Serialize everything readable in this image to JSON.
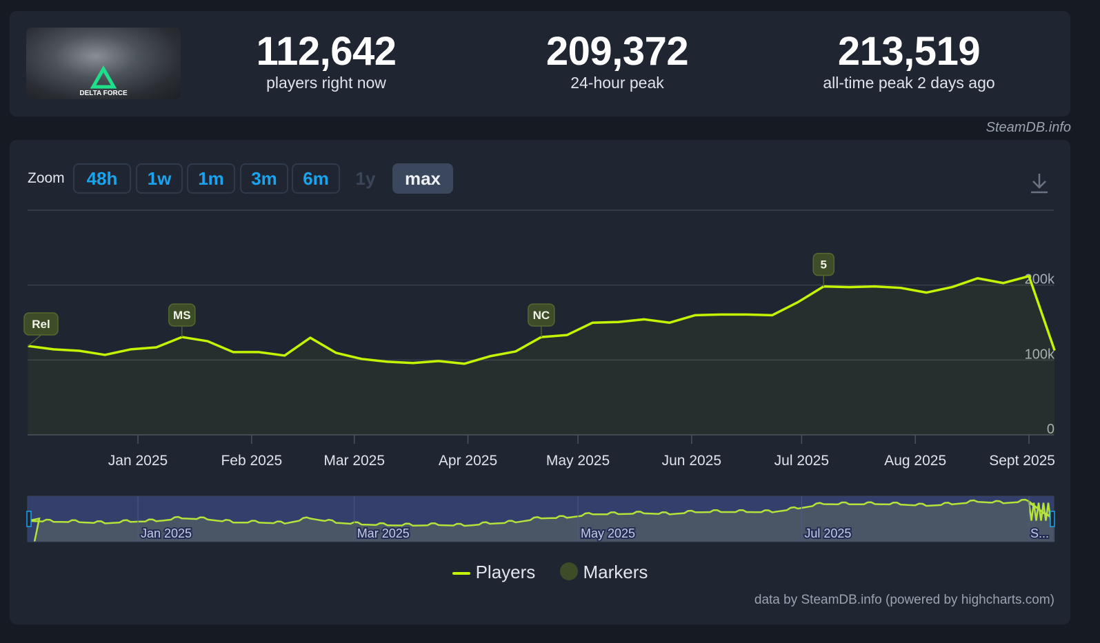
{
  "header": {
    "game_image_alt": "DELTA FORCE",
    "stats": [
      {
        "value": "112,642",
        "label": "players right now"
      },
      {
        "value": "209,372",
        "label": "24-hour peak"
      },
      {
        "value": "213,519",
        "label": "all-time peak 2 days ago"
      }
    ],
    "credit": "SteamDB.info"
  },
  "toolbar": {
    "zoom_label": "Zoom",
    "buttons": [
      {
        "label": "48h",
        "state": "enabled"
      },
      {
        "label": "1w",
        "state": "enabled"
      },
      {
        "label": "1m",
        "state": "enabled"
      },
      {
        "label": "3m",
        "state": "enabled"
      },
      {
        "label": "6m",
        "state": "enabled"
      },
      {
        "label": "1y",
        "state": "disabled"
      },
      {
        "label": "max",
        "state": "active"
      }
    ],
    "download_icon": "download-icon"
  },
  "chart_data": {
    "type": "area",
    "colors": {
      "line": "#c3f400",
      "marker": "#3d4d27"
    },
    "ylim": [
      0,
      300000
    ],
    "y_ticks": [
      {
        "value": 0,
        "label": "0"
      },
      {
        "value": 100000,
        "label": "100k"
      },
      {
        "value": 200000,
        "label": "200k"
      },
      {
        "value": 300000,
        "label": ""
      }
    ],
    "x_ticks": [
      {
        "date": "2025-01-01",
        "label": "Jan 2025"
      },
      {
        "date": "2025-02-01",
        "label": "Feb 2025"
      },
      {
        "date": "2025-03-01",
        "label": "Mar 2025"
      },
      {
        "date": "2025-04-01",
        "label": "Apr 2025"
      },
      {
        "date": "2025-05-01",
        "label": "May 2025"
      },
      {
        "date": "2025-06-01",
        "label": "Jun 2025"
      },
      {
        "date": "2025-07-01",
        "label": "Jul 2025"
      },
      {
        "date": "2025-08-01",
        "label": "Aug 2025"
      },
      {
        "date": "2025-09-01",
        "label": "Sept 2025"
      }
    ],
    "grid": true,
    "series": [
      {
        "name": "Players",
        "points": [
          [
            "2024-12-02",
            118700
          ],
          [
            "2024-12-09",
            114200
          ],
          [
            "2024-12-16",
            112300
          ],
          [
            "2024-12-23",
            106800
          ],
          [
            "2024-12-30",
            114200
          ],
          [
            "2025-01-06",
            116900
          ],
          [
            "2025-01-13",
            130600
          ],
          [
            "2025-01-20",
            125100
          ],
          [
            "2025-01-27",
            110500
          ],
          [
            "2025-02-03",
            110500
          ],
          [
            "2025-02-10",
            105900
          ],
          [
            "2025-02-17",
            129700
          ],
          [
            "2025-02-24",
            109600
          ],
          [
            "2025-03-03",
            101400
          ],
          [
            "2025-03-10",
            97700
          ],
          [
            "2025-03-17",
            95900
          ],
          [
            "2025-03-24",
            98600
          ],
          [
            "2025-03-31",
            95000
          ],
          [
            "2025-04-07",
            105000
          ],
          [
            "2025-04-14",
            111400
          ],
          [
            "2025-04-21",
            130600
          ],
          [
            "2025-04-28",
            133300
          ],
          [
            "2025-05-05",
            149800
          ],
          [
            "2025-05-12",
            150700
          ],
          [
            "2025-05-19",
            154300
          ],
          [
            "2025-05-26",
            149800
          ],
          [
            "2025-06-02",
            159800
          ],
          [
            "2025-06-09",
            160700
          ],
          [
            "2025-06-16",
            160700
          ],
          [
            "2025-06-23",
            159800
          ],
          [
            "2025-06-30",
            177200
          ],
          [
            "2025-07-07",
            198200
          ],
          [
            "2025-07-14",
            197300
          ],
          [
            "2025-07-21",
            198200
          ],
          [
            "2025-07-28",
            196300
          ],
          [
            "2025-08-04",
            190000
          ],
          [
            "2025-08-11",
            197300
          ],
          [
            "2025-08-18",
            209100
          ],
          [
            "2025-08-25",
            202700
          ],
          [
            "2025-09-01",
            211900
          ],
          [
            "2025-09-08",
            112642
          ]
        ]
      }
    ],
    "markers": [
      {
        "date": "2024-12-02",
        "label": "Rel"
      },
      {
        "date": "2025-01-13",
        "label": "MS"
      },
      {
        "date": "2025-04-21",
        "label": "NC"
      },
      {
        "date": "2025-07-07",
        "label": "5"
      }
    ],
    "navigator": {
      "x_ticks": [
        {
          "date": "2025-01-01",
          "label": "Jan 2025"
        },
        {
          "date": "2025-03-01",
          "label": "Mar 2025"
        },
        {
          "date": "2025-05-01",
          "label": "May 2025"
        },
        {
          "date": "2025-07-01",
          "label": "Jul 2025"
        },
        {
          "date": "2025-09-01",
          "label": "S..."
        }
      ]
    },
    "legend": [
      {
        "name": "Players",
        "symbol": "line"
      },
      {
        "name": "Markers",
        "symbol": "circle"
      }
    ],
    "legend_position": "bottom"
  },
  "footer": {
    "credit": "data by SteamDB.info (powered by highcharts.com)"
  }
}
